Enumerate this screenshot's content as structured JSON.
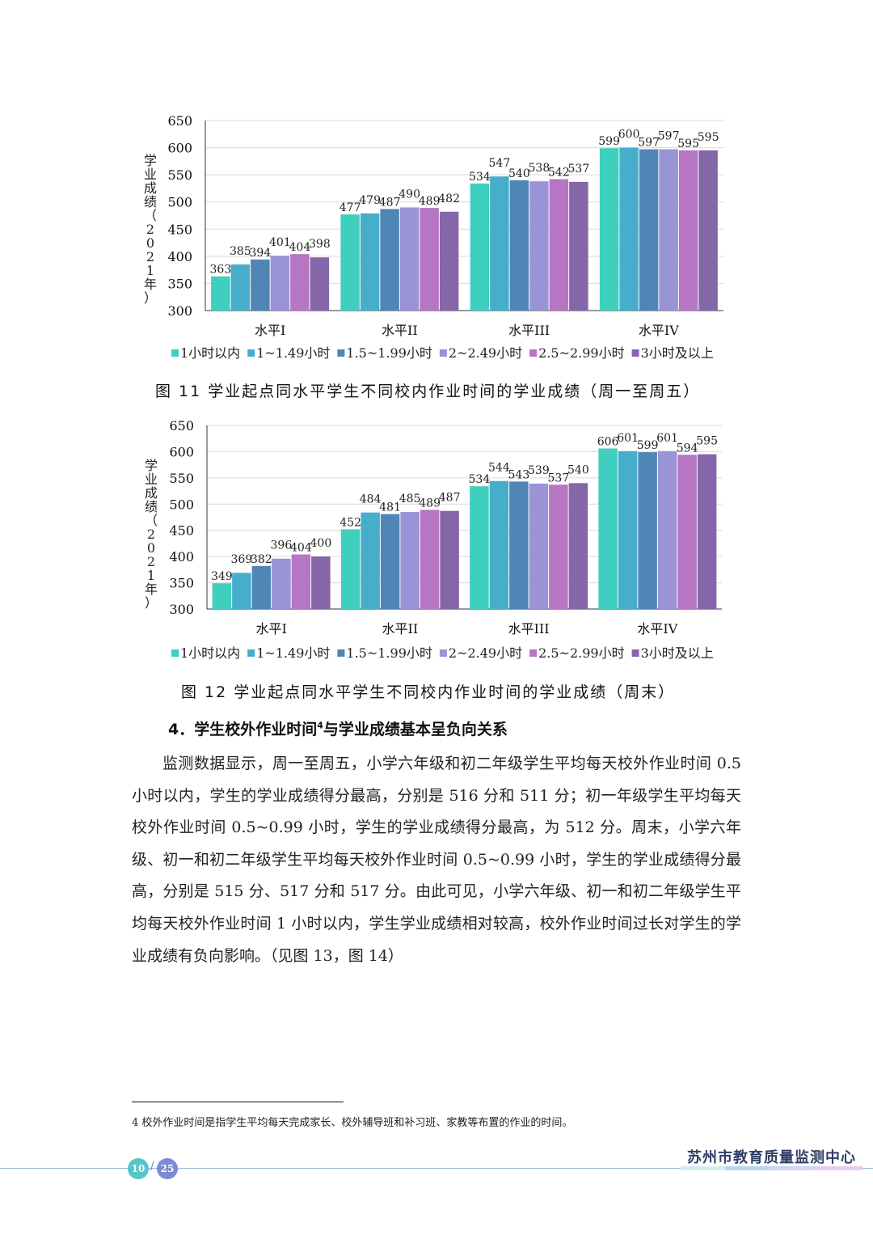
{
  "chart_data": [
    {
      "type": "bar",
      "title": "",
      "ylabel": "学业成绩（2021年）",
      "ylim": [
        300,
        650
      ],
      "yticks": [
        300,
        350,
        400,
        450,
        500,
        550,
        600,
        650
      ],
      "categories": [
        "水平I",
        "水平II",
        "水平III",
        "水平IV"
      ],
      "series": [
        {
          "name": "1小时以内",
          "color": "#3ecfbf",
          "values": [
            363,
            477,
            534,
            599
          ]
        },
        {
          "name": "1~1.49小时",
          "color": "#46aecb",
          "values": [
            385,
            479,
            547,
            600
          ]
        },
        {
          "name": "1.5~1.99小时",
          "color": "#4f86b5",
          "values": [
            394,
            487,
            540,
            597
          ]
        },
        {
          "name": "2~2.49小时",
          "color": "#9a93d6",
          "values": [
            401,
            490,
            538,
            597
          ]
        },
        {
          "name": "2.5~2.99小时",
          "color": "#b676c3",
          "values": [
            404,
            489,
            542,
            595
          ]
        },
        {
          "name": "3小时及以上",
          "color": "#8566a9",
          "values": [
            398,
            482,
            537,
            595
          ]
        }
      ]
    },
    {
      "type": "bar",
      "title": "",
      "ylabel": "学业成绩（2021年）",
      "ylim": [
        300,
        650
      ],
      "yticks": [
        300,
        350,
        400,
        450,
        500,
        550,
        600,
        650
      ],
      "categories": [
        "水平I",
        "水平II",
        "水平III",
        "水平IV"
      ],
      "series": [
        {
          "name": "1小时以内",
          "color": "#3ecfbf",
          "values": [
            349,
            452,
            534,
            606
          ]
        },
        {
          "name": "1~1.49小时",
          "color": "#46aecb",
          "values": [
            369,
            484,
            544,
            601
          ]
        },
        {
          "name": "1.5~1.99小时",
          "color": "#4f86b5",
          "values": [
            382,
            481,
            543,
            599
          ]
        },
        {
          "name": "2~2.49小时",
          "color": "#9a93d6",
          "values": [
            396,
            485,
            539,
            601
          ]
        },
        {
          "name": "2.5~2.99小时",
          "color": "#b676c3",
          "values": [
            404,
            489,
            537,
            594
          ]
        },
        {
          "name": "3小时及以上",
          "color": "#8566a9",
          "values": [
            400,
            487,
            540,
            595
          ]
        }
      ]
    }
  ],
  "captions": {
    "fig11": "图 11   学业起点同水平学生不同校内作业时间的学业成绩（周一至周五）",
    "fig12": "图 12   学业起点同水平学生不同校内作业时间的学业成绩（周末）"
  },
  "section": {
    "heading": "4．学生校外作业时间",
    "heading_sup": "4",
    "heading_tail": "与学业成绩基本呈负向关系",
    "paragraph": "监测数据显示，周一至周五，小学六年级和初二年级学生平均每天校外作业时间 0.5 小时以内，学生的学业成绩得分最高，分别是 516 分和 511 分；初一年级学生平均每天校外作业时间 0.5~0.99 小时，学生的学业成绩得分最高，为 512 分。周末，小学六年级、初一和初二年级学生平均每天校外作业时间 0.5~0.99 小时，学生的学业成绩得分最高，分别是 515 分、517 分和 517 分。由此可见，小学六年级、初一和初二年级学生平均每天校外作业时间 1 小时以内，学生学业成绩相对较高，校外作业时间过长对学生的学业成绩有负向影响。（见图 13，图 14）"
  },
  "footnote": "4  校外作业时间是指学生平均每天完成家长、校外辅导班和补习班、家教等布置的作业的时间。",
  "footer": {
    "page_current": "10",
    "page_total": "25",
    "organization": "苏州市教育质量监测中心"
  }
}
